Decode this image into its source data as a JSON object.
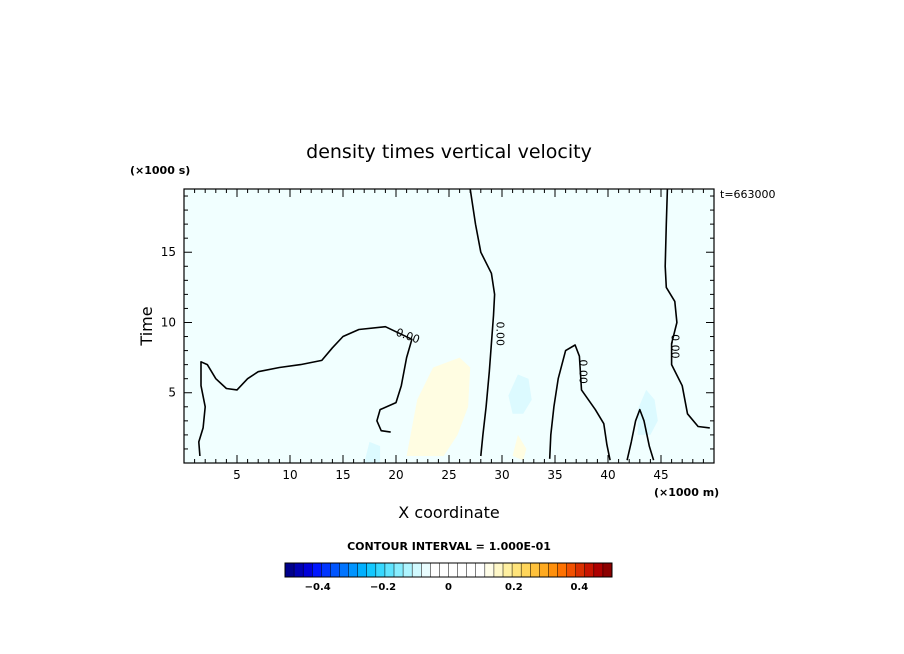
{
  "chart_data": {
    "type": "heatmap",
    "title": "density times vertical velocity",
    "xlabel": "X coordinate",
    "ylabel": "Time",
    "x_unit": "(×1000 m)",
    "y_unit": "(×1000 s)",
    "time_label": "t=663000",
    "xlim": [
      0,
      50
    ],
    "ylim": [
      0,
      19.5
    ],
    "x_ticks": [
      5,
      10,
      15,
      20,
      25,
      30,
      35,
      40,
      45
    ],
    "y_ticks": [
      5,
      10,
      15
    ],
    "contour_labels": [
      {
        "text": "0.00",
        "x": 21.0,
        "y": 8.8
      },
      {
        "text": "0.00",
        "x": 29.5,
        "y": 9.2
      },
      {
        "text": "0.00",
        "x": 37.3,
        "y": 6.5
      },
      {
        "text": "0.00",
        "x": 46.0,
        "y": 8.3
      }
    ],
    "zero_contours": [
      [
        [
          1.5,
          0.5
        ],
        [
          1.4,
          1.5
        ],
        [
          1.8,
          2.5
        ],
        [
          2.0,
          4.0
        ],
        [
          1.6,
          5.5
        ],
        [
          1.6,
          7.2
        ],
        [
          2.2,
          7.0
        ],
        [
          3.0,
          6.0
        ],
        [
          4.0,
          5.3
        ],
        [
          5.0,
          5.2
        ],
        [
          6.0,
          6.0
        ],
        [
          7.0,
          6.5
        ],
        [
          9.0,
          6.8
        ],
        [
          11.0,
          7.0
        ],
        [
          13.0,
          7.3
        ],
        [
          14.0,
          8.2
        ],
        [
          15.0,
          9.0
        ],
        [
          16.5,
          9.5
        ],
        [
          19.0,
          9.7
        ],
        [
          21.5,
          8.8
        ],
        [
          21.0,
          7.5
        ],
        [
          20.5,
          5.5
        ],
        [
          20.0,
          4.3
        ],
        [
          18.5,
          3.8
        ],
        [
          18.2,
          3.0
        ],
        [
          18.6,
          2.3
        ],
        [
          19.5,
          2.2
        ]
      ],
      [
        [
          27.0,
          19.5
        ],
        [
          27.5,
          17.0
        ],
        [
          28.0,
          15.0
        ],
        [
          29.0,
          13.5
        ],
        [
          29.3,
          12.0
        ],
        [
          29.2,
          10.5
        ],
        [
          29.0,
          8.5
        ],
        [
          28.8,
          6.5
        ],
        [
          28.5,
          4.0
        ],
        [
          28.2,
          2.0
        ],
        [
          28.0,
          0.5
        ]
      ],
      [
        [
          45.6,
          19.5
        ],
        [
          45.5,
          17.0
        ],
        [
          45.4,
          14.0
        ],
        [
          45.5,
          12.5
        ],
        [
          46.3,
          11.5
        ],
        [
          46.5,
          10.0
        ],
        [
          46.0,
          8.5
        ],
        [
          46.0,
          7.0
        ],
        [
          47.0,
          5.5
        ],
        [
          47.5,
          3.5
        ],
        [
          48.5,
          2.6
        ],
        [
          49.6,
          2.5
        ]
      ],
      [
        [
          34.5,
          0.3
        ],
        [
          34.6,
          2.0
        ],
        [
          34.9,
          4.0
        ],
        [
          35.3,
          6.0
        ],
        [
          36.0,
          8.0
        ],
        [
          36.9,
          8.4
        ],
        [
          37.3,
          7.6
        ],
        [
          37.5,
          5.2
        ],
        [
          38.8,
          3.8
        ],
        [
          39.6,
          2.8
        ],
        [
          39.9,
          1.3
        ],
        [
          40.2,
          0.2
        ]
      ],
      [
        [
          41.8,
          0.2
        ],
        [
          42.2,
          1.5
        ],
        [
          42.6,
          3.0
        ],
        [
          43.0,
          3.8
        ],
        [
          43.4,
          3.0
        ],
        [
          43.9,
          1.2
        ],
        [
          44.3,
          0.2
        ]
      ]
    ],
    "shaded_regions": [
      {
        "level": "0 to 0.1",
        "color": "#f1ffff",
        "polygon": [
          [
            0,
            0
          ],
          [
            0,
            19.5
          ],
          [
            50,
            19.5
          ],
          [
            50,
            0
          ]
        ]
      },
      {
        "level": "0.1 to 0.2",
        "color": "#fffde2",
        "polygon": [
          [
            21.0,
            0.5
          ],
          [
            22.0,
            4.5
          ],
          [
            23.5,
            6.8
          ],
          [
            26.0,
            7.5
          ],
          [
            27.0,
            6.8
          ],
          [
            26.8,
            4.0
          ],
          [
            25.8,
            2.0
          ],
          [
            24.5,
            0.5
          ]
        ]
      },
      {
        "level": "0.1 to 0.2",
        "color": "#fffde2",
        "polygon": [
          [
            31.0,
            0.5
          ],
          [
            31.5,
            2.0
          ],
          [
            32.3,
            1.0
          ],
          [
            32.0,
            0.2
          ]
        ]
      },
      {
        "level": "-0.1 to 0",
        "color": "#dcfaff",
        "polygon": [
          [
            31.0,
            3.5
          ],
          [
            30.6,
            4.8
          ],
          [
            31.5,
            6.3
          ],
          [
            32.5,
            6.0
          ],
          [
            32.8,
            4.5
          ],
          [
            32.0,
            3.5
          ]
        ]
      },
      {
        "level": "-0.1 to 0",
        "color": "#dcfaff",
        "polygon": [
          [
            42.8,
            2.0
          ],
          [
            42.8,
            3.8
          ],
          [
            43.6,
            5.2
          ],
          [
            44.4,
            4.5
          ],
          [
            44.7,
            3.0
          ],
          [
            44.0,
            2.0
          ]
        ]
      },
      {
        "level": "-0.1 to 0",
        "color": "#dcfaff",
        "polygon": [
          [
            17.0,
            0.0
          ],
          [
            17.5,
            1.5
          ],
          [
            18.5,
            1.2
          ],
          [
            18.5,
            0.0
          ]
        ]
      }
    ],
    "colorbar": {
      "title": "CONTOUR INTERVAL = 1.000E-01",
      "range": [
        -0.5,
        0.5
      ],
      "ticks": [
        {
          "value": -0.4,
          "label": "−0.4"
        },
        {
          "value": -0.2,
          "label": "−0.2"
        },
        {
          "value": 0,
          "label": "0"
        },
        {
          "value": 0.2,
          "label": "0.2"
        },
        {
          "value": 0.4,
          "label": "0.4"
        }
      ],
      "colors": [
        "#00008c",
        "#0000b4",
        "#0000d9",
        "#0016ff",
        "#0035ff",
        "#0055ff",
        "#0074ff",
        "#0094ff",
        "#00b0ff",
        "#13c8ff",
        "#36d8ff",
        "#5ee4ff",
        "#87eeff",
        "#aef5ff",
        "#d1faff",
        "#eafdff",
        "#ffffff",
        "#ffffff",
        "#ffffff",
        "#ffffff",
        "#ffffff",
        "#ffffff",
        "#fffde8",
        "#fff8c8",
        "#fff0a0",
        "#ffe47a",
        "#ffd55a",
        "#ffc23c",
        "#ffaa20",
        "#ff900c",
        "#ff7200",
        "#f25100",
        "#db3000",
        "#c81400",
        "#ad0000",
        "#8c0000"
      ]
    }
  }
}
